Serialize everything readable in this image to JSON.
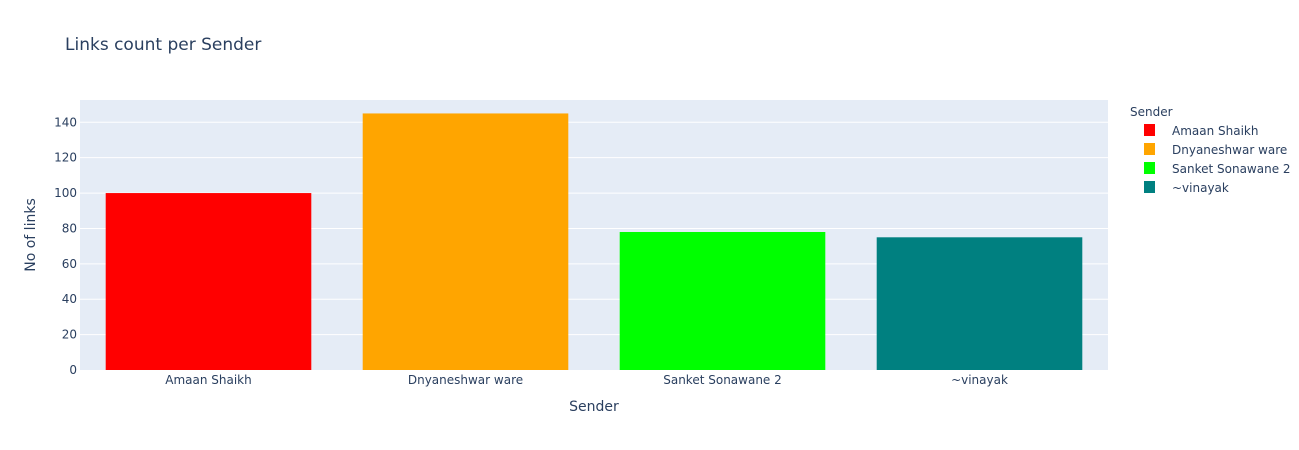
{
  "chart_data": {
    "type": "bar",
    "title": "Links count per Sender",
    "xlabel": "Sender",
    "ylabel": "No of links",
    "categories": [
      "Amaan Shaikh",
      "Dnyaneshwar ware",
      "Sanket Sonawane 2",
      "~vinayak"
    ],
    "values": [
      100,
      145,
      78,
      75
    ],
    "colors": [
      "#ff0000",
      "#ffa500",
      "#00ff00",
      "#008080"
    ],
    "ylim": [
      0,
      152.6
    ],
    "yticks": [
      0,
      20,
      40,
      60,
      80,
      100,
      120,
      140
    ],
    "grid": true,
    "plot_background": "#e5ecf6",
    "legend": {
      "title": "Sender",
      "placement": "right",
      "entries": [
        "Amaan Shaikh",
        "Dnyaneshwar ware",
        "Sanket Sonawane 2",
        "~vinayak"
      ]
    }
  }
}
